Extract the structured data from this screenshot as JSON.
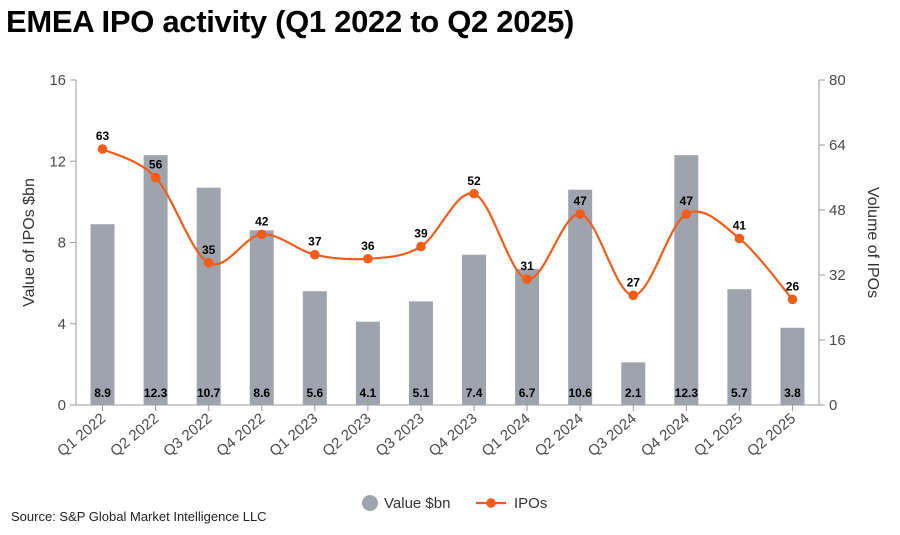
{
  "chart_data": {
    "type": "bar",
    "title": "EMEA IPO activity (Q1 2022 to Q2 2025)",
    "source": "Source: S&P Global Market Intelligence LLC",
    "categories": [
      "Q1 2022",
      "Q2 2022",
      "Q3 2022",
      "Q4 2022",
      "Q1 2023",
      "Q2 2023",
      "Q3 2023",
      "Q4 2023",
      "Q1 2024",
      "Q2 2024",
      "Q3 2024",
      "Q4 2024",
      "Q1 2025",
      "Q2 2025"
    ],
    "series": [
      {
        "name": "Value $bn",
        "type": "bar",
        "axis": "left",
        "color": "#9fa3ae",
        "values": [
          8.9,
          12.3,
          10.7,
          8.6,
          5.6,
          4.1,
          5.1,
          7.4,
          6.7,
          10.6,
          2.1,
          12.3,
          5.7,
          3.8
        ]
      },
      {
        "name": "IPOs",
        "type": "line",
        "axis": "right",
        "color": "#f25c19",
        "values": [
          63,
          56,
          35,
          42,
          37,
          36,
          39,
          52,
          31,
          47,
          27,
          47,
          41,
          26
        ]
      }
    ],
    "ylabel": "Value of IPOs $bn",
    "y2label": "Volume of IPOs",
    "ylim": [
      0,
      16
    ],
    "yticks": [
      0,
      4,
      8,
      12,
      16
    ],
    "y2lim": [
      0,
      80
    ],
    "y2ticks": [
      0,
      16,
      32,
      48,
      64,
      80
    ],
    "legend_position": "bottom-center",
    "grid": false
  }
}
